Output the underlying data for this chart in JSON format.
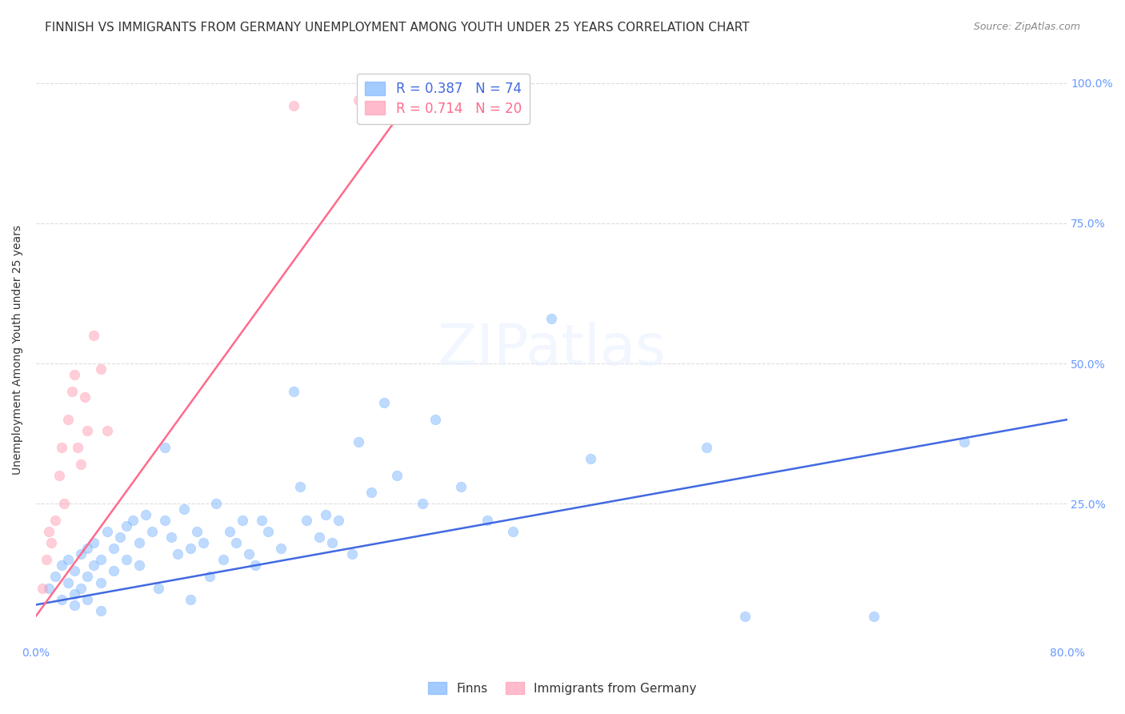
{
  "title": "FINNISH VS IMMIGRANTS FROM GERMANY UNEMPLOYMENT AMONG YOUTH UNDER 25 YEARS CORRELATION CHART",
  "source": "Source: ZipAtlas.com",
  "xlabel": "",
  "ylabel": "Unemployment Among Youth under 25 years",
  "xlim": [
    0.0,
    0.8
  ],
  "ylim": [
    0.0,
    1.05
  ],
  "watermark": "ZIPatlas",
  "blue_color": "#7EB6FF",
  "pink_color": "#FF9EB5",
  "blue_line_color": "#4169E1",
  "pink_line_color": "#FF6B8A",
  "R_blue": 0.387,
  "N_blue": 74,
  "R_pink": 0.714,
  "N_pink": 20,
  "legend_label_blue": "Finns",
  "legend_label_pink": "Immigrants from Germany",
  "blue_scatter_x": [
    0.01,
    0.015,
    0.02,
    0.02,
    0.025,
    0.025,
    0.03,
    0.03,
    0.03,
    0.035,
    0.035,
    0.04,
    0.04,
    0.04,
    0.045,
    0.045,
    0.05,
    0.05,
    0.05,
    0.055,
    0.06,
    0.06,
    0.065,
    0.07,
    0.07,
    0.075,
    0.08,
    0.08,
    0.085,
    0.09,
    0.095,
    0.1,
    0.1,
    0.105,
    0.11,
    0.115,
    0.12,
    0.12,
    0.125,
    0.13,
    0.135,
    0.14,
    0.145,
    0.15,
    0.155,
    0.16,
    0.165,
    0.17,
    0.175,
    0.18,
    0.19,
    0.2,
    0.205,
    0.21,
    0.22,
    0.225,
    0.23,
    0.235,
    0.245,
    0.25,
    0.26,
    0.27,
    0.28,
    0.3,
    0.31,
    0.33,
    0.35,
    0.37,
    0.4,
    0.43,
    0.52,
    0.55,
    0.65,
    0.72
  ],
  "blue_scatter_y": [
    0.1,
    0.12,
    0.14,
    0.08,
    0.15,
    0.11,
    0.09,
    0.13,
    0.07,
    0.16,
    0.1,
    0.17,
    0.12,
    0.08,
    0.18,
    0.14,
    0.15,
    0.11,
    0.06,
    0.2,
    0.17,
    0.13,
    0.19,
    0.21,
    0.15,
    0.22,
    0.18,
    0.14,
    0.23,
    0.2,
    0.1,
    0.35,
    0.22,
    0.19,
    0.16,
    0.24,
    0.08,
    0.17,
    0.2,
    0.18,
    0.12,
    0.25,
    0.15,
    0.2,
    0.18,
    0.22,
    0.16,
    0.14,
    0.22,
    0.2,
    0.17,
    0.45,
    0.28,
    0.22,
    0.19,
    0.23,
    0.18,
    0.22,
    0.16,
    0.36,
    0.27,
    0.43,
    0.3,
    0.25,
    0.4,
    0.28,
    0.22,
    0.2,
    0.58,
    0.33,
    0.35,
    0.05,
    0.05,
    0.36
  ],
  "pink_scatter_x": [
    0.005,
    0.008,
    0.01,
    0.012,
    0.015,
    0.018,
    0.02,
    0.022,
    0.025,
    0.028,
    0.03,
    0.032,
    0.035,
    0.038,
    0.04,
    0.045,
    0.05,
    0.055,
    0.2,
    0.25
  ],
  "pink_scatter_y": [
    0.1,
    0.15,
    0.2,
    0.18,
    0.22,
    0.3,
    0.35,
    0.25,
    0.4,
    0.45,
    0.48,
    0.35,
    0.32,
    0.44,
    0.38,
    0.55,
    0.49,
    0.38,
    0.96,
    0.97
  ],
  "blue_trend_x": [
    0.0,
    0.8
  ],
  "blue_trend_y": [
    0.07,
    0.4
  ],
  "pink_trend_x": [
    0.0,
    0.3
  ],
  "pink_trend_y": [
    0.05,
    1.0
  ],
  "title_fontsize": 11,
  "label_fontsize": 10,
  "tick_fontsize": 10,
  "scatter_size": 80,
  "scatter_alpha": 0.5,
  "grid_color": "#DDDDDD",
  "right_tick_color": "#6699FF"
}
